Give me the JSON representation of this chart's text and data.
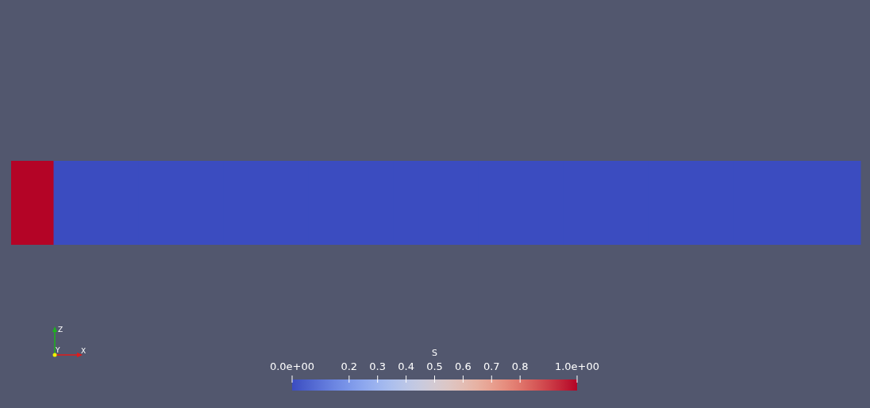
{
  "chart_data": {
    "type": "heatmap",
    "categories": [
      null,
      null,
      null,
      null,
      null,
      null,
      null,
      null,
      null,
      null,
      null,
      null,
      null,
      null,
      null,
      null,
      null,
      null,
      null,
      null
    ],
    "y_categories": [
      null
    ],
    "cells": [
      [
        1,
        0,
        0,
        0,
        0,
        0,
        0,
        0,
        0,
        0,
        0,
        0,
        0,
        0,
        0,
        0,
        0,
        0,
        0,
        0
      ]
    ],
    "clabel": "S",
    "clim": [
      0,
      1
    ],
    "cticks": [
      {
        "value": 0,
        "label": "0.0e+00"
      },
      0.2,
      0.3,
      0.4,
      0.5,
      0.6,
      0.7,
      0.8,
      {
        "value": 1,
        "label": "1.0e+00"
      }
    ],
    "annotations": [
      "Z",
      "Y",
      "X"
    ]
  }
}
